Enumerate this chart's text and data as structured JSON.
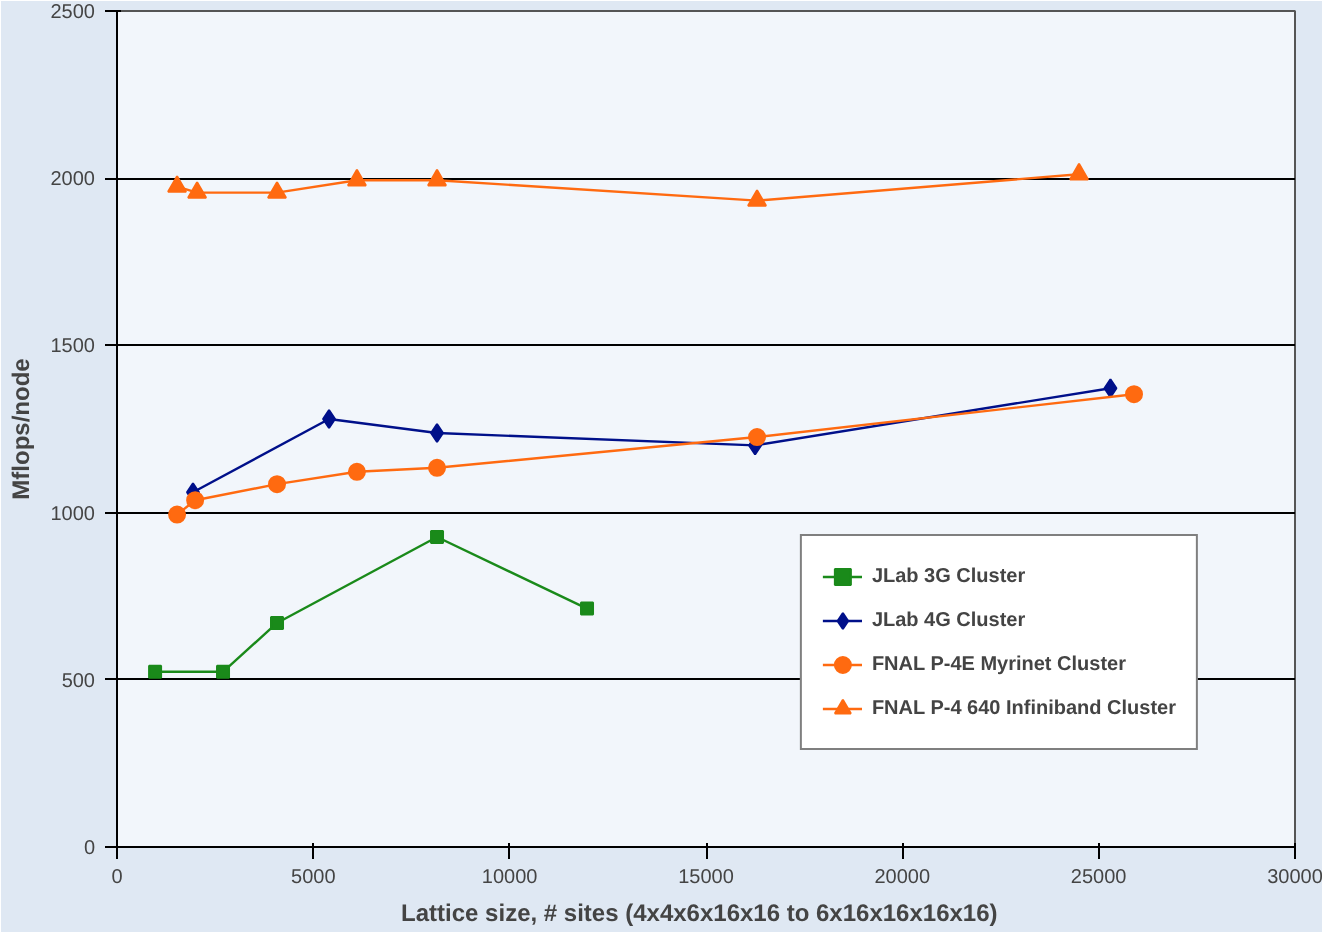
{
  "chart_data": {
    "type": "line",
    "xlabel": "Lattice size, # sites (4x4x6x16x16  to  6x16x16x16x16)",
    "ylabel": "Mflops/node",
    "xlim": [
      0,
      30000
    ],
    "xticks": [
      0,
      5000,
      10000,
      15000,
      20000,
      25000,
      30000
    ],
    "ylim": [
      0,
      2500
    ],
    "yticks": [
      0,
      500,
      1000,
      1500,
      2000,
      2500
    ],
    "grid": "y",
    "legend": "bottom right",
    "series": [
      {
        "name": "JLab 3G Cluster",
        "color": "#1a8a1a",
        "marker": "square",
        "x": [
          970,
          2700,
          4075,
          8150,
          11970
        ],
        "values": [
          524,
          524,
          670,
          927,
          713
        ]
      },
      {
        "name": "JLab 4G Cluster",
        "color": "#00108a",
        "marker": "diamond",
        "x": [
          1935,
          5400,
          8150,
          16250,
          25300
        ],
        "values": [
          1061,
          1280,
          1238,
          1201,
          1372
        ]
      },
      {
        "name": "FNAL P-4E Myrinet Cluster",
        "color": "#ff6a10",
        "marker": "circle",
        "x": [
          1530,
          1990,
          4075,
          6110,
          8150,
          16300,
          25900
        ],
        "values": [
          994,
          1037,
          1085,
          1122,
          1134,
          1226,
          1354
        ]
      },
      {
        "name": "FNAL P-4 640 Infiniband Cluster",
        "color": "#ff6a10",
        "marker": "triangle",
        "x": [
          1530,
          2040,
          4075,
          6110,
          8150,
          16300,
          24500
        ],
        "values": [
          1975,
          1957,
          1957,
          1994,
          1994,
          1933,
          2012
        ]
      }
    ]
  }
}
